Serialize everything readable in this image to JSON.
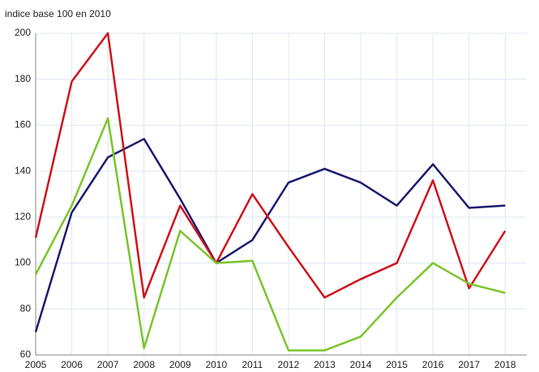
{
  "chart_data": {
    "type": "line",
    "subtitle": "indice base 100 en 2010",
    "x": [
      2005,
      2006,
      2007,
      2008,
      2009,
      2010,
      2011,
      2012,
      2013,
      2014,
      2015,
      2016,
      2017,
      2018
    ],
    "series": [
      {
        "color": "#1b1b6f",
        "values": [
          70,
          122,
          146,
          154,
          128,
          100,
          110,
          135,
          141,
          135,
          125,
          143,
          124,
          125
        ]
      },
      {
        "color": "#d0121b",
        "values": [
          111,
          179,
          200,
          85,
          125,
          100,
          130,
          107,
          85,
          93,
          100,
          136,
          89,
          114
        ]
      },
      {
        "color": "#7ac52a",
        "values": [
          95,
          125,
          163,
          63,
          114,
          100,
          101,
          62,
          62,
          68,
          85,
          100,
          91,
          87
        ]
      }
    ],
    "xlim": [
      2005,
      2018.6
    ],
    "ylim": [
      60,
      200
    ],
    "xticks": [
      2005,
      2006,
      2007,
      2008,
      2009,
      2010,
      2011,
      2012,
      2013,
      2014,
      2015,
      2016,
      2017,
      2018
    ],
    "yticks": [
      60,
      80,
      100,
      120,
      140,
      160,
      180,
      200
    ],
    "grid": true
  }
}
